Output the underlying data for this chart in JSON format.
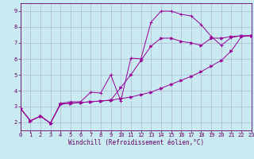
{
  "xlabel": "Windchill (Refroidissement éolien,°C)",
  "ylabel": "",
  "background_color": "#c8eaf0",
  "grid_color": "#aaaacc",
  "line_color": "#990099",
  "spine_color": "#660066",
  "xlim": [
    0,
    23
  ],
  "ylim": [
    1.5,
    9.5
  ],
  "xticks": [
    0,
    1,
    2,
    3,
    4,
    5,
    6,
    7,
    8,
    9,
    10,
    11,
    12,
    13,
    14,
    15,
    16,
    17,
    18,
    19,
    20,
    21,
    22,
    23
  ],
  "yticks": [
    2,
    3,
    4,
    5,
    6,
    7,
    8,
    9
  ],
  "series1": [
    [
      0,
      2.9
    ],
    [
      1,
      2.1
    ],
    [
      2,
      2.4
    ],
    [
      3,
      1.95
    ],
    [
      4,
      3.2
    ],
    [
      5,
      3.3
    ],
    [
      6,
      3.3
    ],
    [
      7,
      3.9
    ],
    [
      8,
      3.85
    ],
    [
      9,
      5.0
    ],
    [
      10,
      3.35
    ],
    [
      11,
      6.05
    ],
    [
      12,
      6.0
    ],
    [
      13,
      8.3
    ],
    [
      14,
      9.0
    ],
    [
      15,
      9.0
    ],
    [
      16,
      8.8
    ],
    [
      17,
      8.7
    ],
    [
      18,
      8.15
    ],
    [
      19,
      7.4
    ],
    [
      20,
      6.85
    ],
    [
      21,
      7.35
    ],
    [
      22,
      7.45
    ],
    [
      23,
      7.45
    ]
  ],
  "series2": [
    [
      0,
      2.9
    ],
    [
      1,
      2.1
    ],
    [
      2,
      2.4
    ],
    [
      3,
      1.95
    ],
    [
      4,
      3.15
    ],
    [
      5,
      3.2
    ],
    [
      6,
      3.25
    ],
    [
      7,
      3.3
    ],
    [
      8,
      3.35
    ],
    [
      9,
      3.4
    ],
    [
      10,
      3.5
    ],
    [
      11,
      3.6
    ],
    [
      12,
      3.75
    ],
    [
      13,
      3.9
    ],
    [
      14,
      4.15
    ],
    [
      15,
      4.4
    ],
    [
      16,
      4.65
    ],
    [
      17,
      4.9
    ],
    [
      18,
      5.2
    ],
    [
      19,
      5.55
    ],
    [
      20,
      5.9
    ],
    [
      21,
      6.5
    ],
    [
      22,
      7.4
    ],
    [
      23,
      7.45
    ]
  ],
  "series3": [
    [
      0,
      2.9
    ],
    [
      1,
      2.1
    ],
    [
      2,
      2.4
    ],
    [
      3,
      1.95
    ],
    [
      4,
      3.15
    ],
    [
      5,
      3.2
    ],
    [
      6,
      3.25
    ],
    [
      7,
      3.3
    ],
    [
      8,
      3.35
    ],
    [
      9,
      3.4
    ],
    [
      10,
      4.2
    ],
    [
      11,
      5.0
    ],
    [
      12,
      5.9
    ],
    [
      13,
      6.8
    ],
    [
      14,
      7.3
    ],
    [
      15,
      7.3
    ],
    [
      16,
      7.1
    ],
    [
      17,
      7.0
    ],
    [
      18,
      6.85
    ],
    [
      19,
      7.3
    ],
    [
      20,
      7.3
    ],
    [
      21,
      7.4
    ],
    [
      22,
      7.45
    ],
    [
      23,
      7.45
    ]
  ],
  "tick_fontsize": 5,
  "xlabel_fontsize": 5.5,
  "lw": 0.7,
  "marker_size": 2.5
}
